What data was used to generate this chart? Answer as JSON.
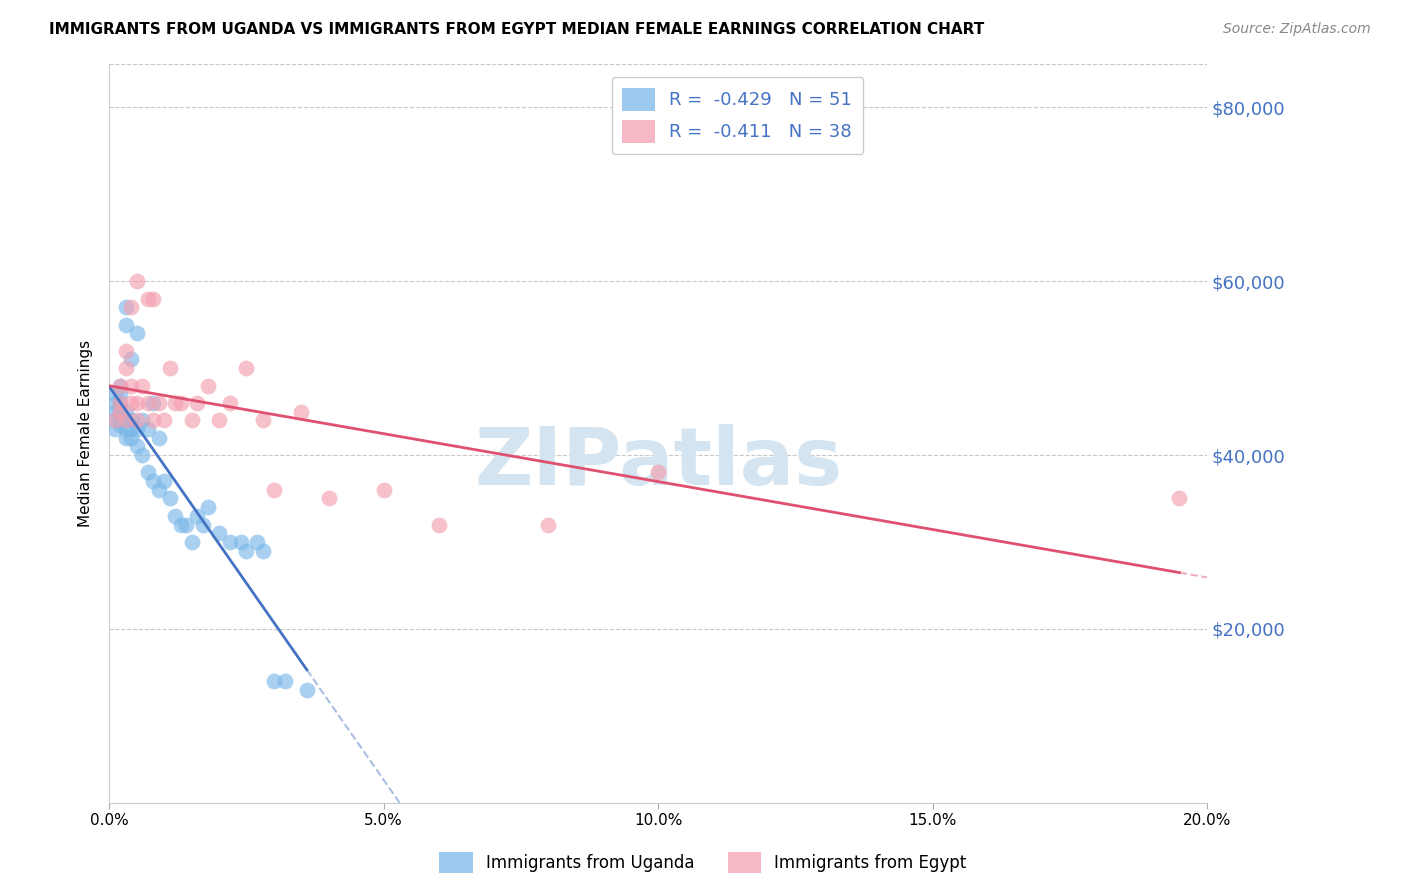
{
  "title": "IMMIGRANTS FROM UGANDA VS IMMIGRANTS FROM EGYPT MEDIAN FEMALE EARNINGS CORRELATION CHART",
  "source": "Source: ZipAtlas.com",
  "ylabel": "Median Female Earnings",
  "xlim": [
    0.0,
    0.2
  ],
  "ylim": [
    0,
    85000
  ],
  "yticks": [
    0,
    20000,
    40000,
    60000,
    80000
  ],
  "ytick_labels": [
    "",
    "$20,000",
    "$40,000",
    "$60,000",
    "$80,000"
  ],
  "xticks": [
    0.0,
    0.05,
    0.1,
    0.15,
    0.2
  ],
  "xtick_labels": [
    "0.0%",
    "5.0%",
    "10.0%",
    "15.0%",
    "20.0%"
  ],
  "uganda_color": "#7bb8e8",
  "egypt_color": "#f4a0b0",
  "uganda_R": -0.429,
  "uganda_N": 51,
  "egypt_R": -0.411,
  "egypt_N": 38,
  "uganda_x": [
    0.001,
    0.001,
    0.001,
    0.001,
    0.001,
    0.002,
    0.002,
    0.002,
    0.002,
    0.002,
    0.002,
    0.002,
    0.003,
    0.003,
    0.003,
    0.003,
    0.003,
    0.003,
    0.004,
    0.004,
    0.004,
    0.004,
    0.005,
    0.005,
    0.005,
    0.006,
    0.006,
    0.007,
    0.007,
    0.008,
    0.008,
    0.009,
    0.009,
    0.01,
    0.011,
    0.012,
    0.013,
    0.014,
    0.015,
    0.016,
    0.017,
    0.018,
    0.02,
    0.022,
    0.024,
    0.025,
    0.027,
    0.028,
    0.03,
    0.032,
    0.036
  ],
  "uganda_y": [
    43000,
    44000,
    45000,
    46000,
    47000,
    43500,
    44000,
    44500,
    45000,
    46000,
    47000,
    48000,
    42000,
    43000,
    44000,
    45000,
    55000,
    57000,
    42000,
    43000,
    44000,
    51000,
    41000,
    43000,
    54000,
    40000,
    44000,
    38000,
    43000,
    37000,
    46000,
    36000,
    42000,
    37000,
    35000,
    33000,
    32000,
    32000,
    30000,
    33000,
    32000,
    34000,
    31000,
    30000,
    30000,
    29000,
    30000,
    29000,
    14000,
    14000,
    13000
  ],
  "egypt_x": [
    0.001,
    0.002,
    0.002,
    0.002,
    0.003,
    0.003,
    0.003,
    0.004,
    0.004,
    0.004,
    0.005,
    0.005,
    0.005,
    0.006,
    0.007,
    0.007,
    0.008,
    0.008,
    0.009,
    0.01,
    0.011,
    0.012,
    0.013,
    0.015,
    0.016,
    0.018,
    0.02,
    0.022,
    0.025,
    0.028,
    0.03,
    0.035,
    0.04,
    0.05,
    0.06,
    0.08,
    0.1,
    0.195
  ],
  "egypt_y": [
    44000,
    45000,
    46000,
    48000,
    44000,
    50000,
    52000,
    46000,
    48000,
    57000,
    44000,
    46000,
    60000,
    48000,
    46000,
    58000,
    44000,
    58000,
    46000,
    44000,
    50000,
    46000,
    46000,
    44000,
    46000,
    48000,
    44000,
    46000,
    50000,
    44000,
    36000,
    45000,
    35000,
    36000,
    32000,
    32000,
    38000,
    35000
  ],
  "uganda_line_color": "#4472c4",
  "egypt_line_color": "#e05070",
  "background_color": "#ffffff",
  "grid_color": "#c8c8c8",
  "axis_label_color": "#4472c4",
  "watermark": "ZIPatlas",
  "watermark_color": "#d4e4f0",
  "title_fontsize": 11,
  "source_fontsize": 10
}
